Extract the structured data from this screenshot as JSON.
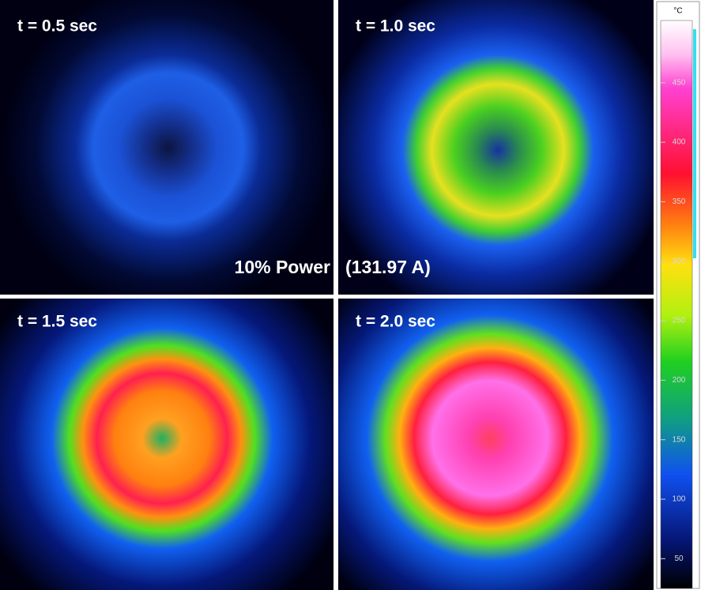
{
  "panels": [
    {
      "label": "t = 0.5 sec"
    },
    {
      "label": "t = 1.0 sec"
    },
    {
      "label": "t = 1.5 sec"
    },
    {
      "label": "t = 2.0 sec"
    }
  ],
  "caption": {
    "left": "10% Power",
    "right": "(131.97 A)"
  },
  "colorbar": {
    "unit": "°C",
    "range": [
      25,
      495
    ],
    "ticks": [
      50,
      100,
      150,
      200,
      250,
      300,
      350,
      400,
      450
    ]
  }
}
